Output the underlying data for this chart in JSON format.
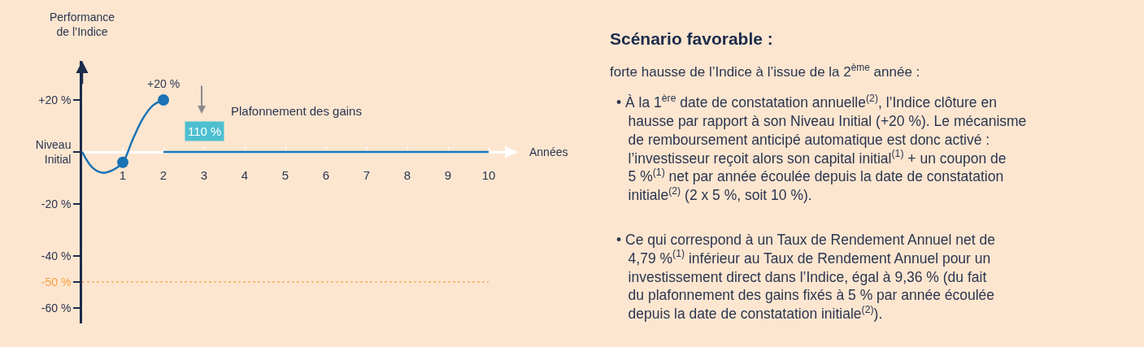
{
  "chart_data": {
    "type": "line",
    "title": "Scénario favorable :",
    "subtitle": "forte hausse de l’Indice à l’issue de la 2$^{ème}$ année :",
    "xlabel": "Années",
    "ylabel": "Performance\nde l’Indice",
    "xlim": [
      0,
      10.7
    ],
    "xticks": [
      1,
      2,
      3,
      4,
      5,
      6,
      7,
      8,
      9,
      10
    ],
    "ylim": [
      -66,
      35
    ],
    "yticks": [
      {
        "value": 20,
        "label": "+20 %"
      },
      {
        "value": 0,
        "label": "Niveau\nInitial"
      },
      {
        "value": -20,
        "label": "-20 %"
      },
      {
        "value": -40,
        "label": "-40 %"
      },
      {
        "value": -50,
        "label": "-50 %"
      },
      {
        "value": -60,
        "label": "-60 %"
      }
    ],
    "series": [
      {
        "color": "#1a73b5",
        "marker": "none",
        "x": [
          0,
          0.25,
          0.5,
          0.75,
          1,
          1.25,
          1.5,
          1.75,
          2
        ],
        "values": [
          0,
          -6,
          -8,
          -7,
          -4,
          5,
          13,
          18,
          20
        ]
      },
      {
        "type": "scatter",
        "color": "#1a73b5",
        "marker": "circle",
        "x": [
          1,
          2
        ],
        "values": [
          -4,
          20
        ]
      },
      {
        "type": "line",
        "color": "#1a73b5",
        "marker": "none",
        "x": [
          2,
          10
        ],
        "values": [
          0,
          0
        ]
      }
    ],
    "ref_lines": [
      {
        "axis": "y",
        "value": -50,
        "color": "#f5a040",
        "line_style": "dotted"
      }
    ],
    "grid": false,
    "annotations": [
      {
        "text": "+20 %",
        "x": 2,
        "y": 20
      },
      "Plafonnement des gains",
      "110 %",
      "• À la 1$^{ère}$ date de constatation annuelle$^{(2)}$, l’Indice clôture en\n  hausse par rapport à son Niveau Initial (+20 %). Le mécanisme\n  de remboursement anticipé automatique est donc activé :\n  l’investisseur reçoit alors son capital initial$^{(1)}$ + un coupon de\n  5 %$^{(1)}$ net par année écoulée depuis la date de constatation\n  initiale$^{(2)}$ (2 x 5 %, soit 10 %).",
      "• Ce qui correspond à un Taux de Rendement Annuel net de\n  4,79 %$^{(1)}$ inférieur au Taux de Rendement Annuel pour un\n  investissement direct dans l’Indice, égal à 9,36 % (du fait\n  du plafonnement des gains fixés à 5 % par année écoulée\n  depuis la date de constatation initiale$^{(2)}$)."
    ]
  }
}
